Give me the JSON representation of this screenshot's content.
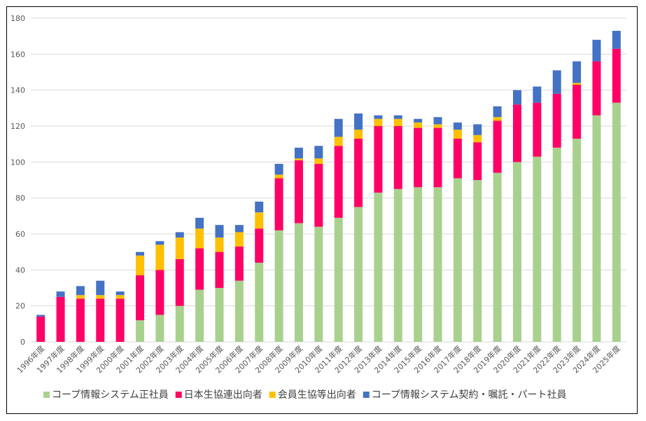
{
  "chart_data": {
    "type": "bar",
    "stacked": true,
    "title": "",
    "xlabel": "",
    "ylabel": "",
    "ylim": [
      0,
      180
    ],
    "yticks": [
      0,
      20,
      40,
      60,
      80,
      100,
      120,
      140,
      160,
      180
    ],
    "grid": true,
    "legend_position": "bottom",
    "categories": [
      "1996年度",
      "1997年度",
      "1998年度",
      "1999年度",
      "2000年度",
      "2001年度",
      "2002年度",
      "2003年度",
      "2004年度",
      "2005年度",
      "2006年度",
      "2007年度",
      "2008年度",
      "2009年度",
      "2010年度",
      "2011年度",
      "2012年度",
      "2013年度",
      "2014年度",
      "2015年度",
      "2016年度",
      "2017年度",
      "2018年度",
      "2019年度",
      "2020年度",
      "2021年度",
      "2022年度",
      "2023年度",
      "2024年度",
      "2025年度"
    ],
    "series": [
      {
        "name": "コープ情報システム正社員",
        "color": "#A9D18E",
        "values": [
          0,
          0,
          0,
          0,
          0,
          12,
          15,
          20,
          29,
          30,
          34,
          44,
          62,
          66,
          64,
          69,
          75,
          83,
          85,
          86,
          86,
          91,
          90,
          94,
          100,
          103,
          108,
          113,
          126,
          133
        ]
      },
      {
        "name": "日本生協連出向者",
        "color": "#FF0066",
        "values": [
          14,
          25,
          24,
          24,
          24,
          25,
          25,
          26,
          23,
          20,
          19,
          19,
          29,
          35,
          35,
          40,
          38,
          37,
          35,
          33,
          33,
          22,
          21,
          29,
          32,
          30,
          30,
          30,
          30,
          30
        ]
      },
      {
        "name": "会員生協等出向者",
        "color": "#FFC000",
        "values": [
          0,
          0,
          2,
          2,
          2,
          11,
          14,
          12,
          11,
          8,
          8,
          9,
          2,
          1,
          3,
          5,
          5,
          4,
          4,
          3,
          2,
          5,
          4,
          2,
          0,
          0,
          0,
          1,
          0,
          0
        ]
      },
      {
        "name": "コープ情報システム契約・嘱託・パート社員",
        "color": "#4472C4",
        "values": [
          1,
          3,
          5,
          8,
          2,
          2,
          2,
          3,
          6,
          7,
          4,
          6,
          6,
          6,
          7,
          10,
          9,
          2,
          2,
          2,
          4,
          4,
          6,
          6,
          8,
          9,
          13,
          12,
          12,
          10
        ]
      }
    ]
  }
}
